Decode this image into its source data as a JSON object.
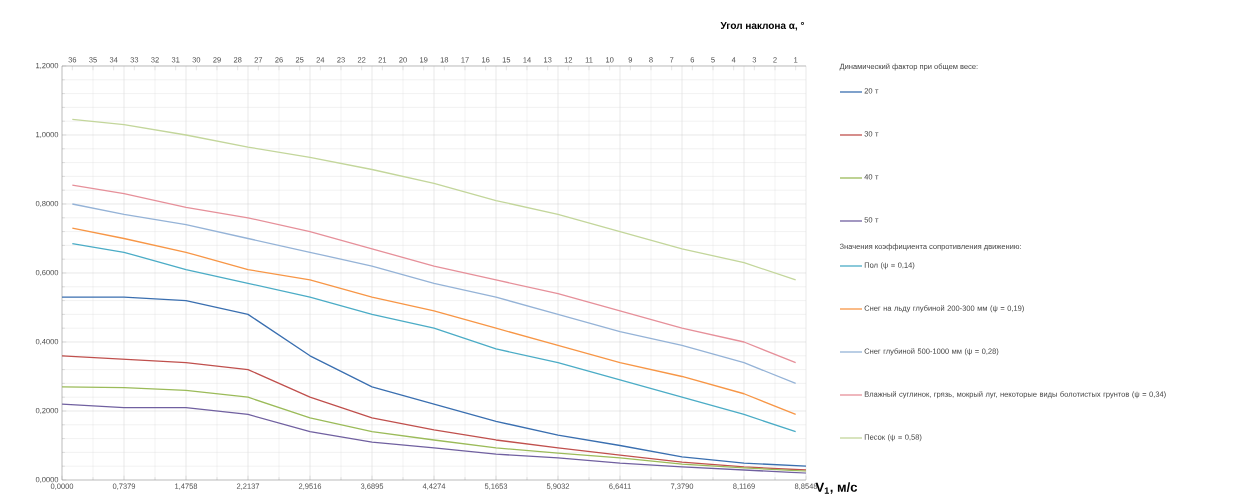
{
  "chart_data": {
    "type": "line",
    "xlabel": "V$_{1}$, м/с",
    "x2label": "Угол наклона α, °",
    "legend_title": "Динамический фактор при общем весе:",
    "annotations": [
      "Значения коэффициента сопротивления движению:"
    ],
    "x": [
      0,
      0.7379,
      1.4758,
      2.2137,
      2.9516,
      3.6895,
      4.4274,
      5.1653,
      5.9032,
      6.6411,
      7.379,
      8.1169,
      8.8548
    ],
    "xlim": [
      0,
      8.8548
    ],
    "xticks": [
      {
        "value": 0,
        "label": "0,0000"
      },
      {
        "value": 0.7379,
        "label": "0,7379"
      },
      {
        "value": 1.4758,
        "label": "1,4758"
      },
      {
        "value": 2.2137,
        "label": "2,2137"
      },
      {
        "value": 2.9516,
        "label": "2,9516"
      },
      {
        "value": 3.6895,
        "label": "3,6895"
      },
      {
        "value": 4.4274,
        "label": "4,4274"
      },
      {
        "value": 5.1653,
        "label": "5,1653"
      },
      {
        "value": 5.9032,
        "label": "5,9032"
      },
      {
        "value": 6.6411,
        "label": "6,6411"
      },
      {
        "value": 7.379,
        "label": "7,3790"
      },
      {
        "value": 8.1169,
        "label": "8,1169"
      },
      {
        "value": 8.8548,
        "label": "8,8548"
      }
    ],
    "x2lim": [
      36.5,
      0.5
    ],
    "x2ticks": [
      36,
      35,
      34,
      33,
      32,
      31,
      30,
      29,
      28,
      27,
      26,
      25,
      24,
      23,
      22,
      21,
      20,
      19,
      18,
      17,
      16,
      15,
      14,
      13,
      12,
      11,
      10,
      9,
      8,
      7,
      6,
      5,
      4,
      3,
      2,
      1
    ],
    "ylim": [
      0,
      1.2
    ],
    "yticks": [
      {
        "value": 0,
        "label": "0,0000"
      },
      {
        "value": 0.2,
        "label": "0,2000"
      },
      {
        "value": 0.4,
        "label": "0,4000"
      },
      {
        "value": 0.6,
        "label": "0,6000"
      },
      {
        "value": 0.8,
        "label": "0,8000"
      },
      {
        "value": 1.0,
        "label": "1,0000"
      },
      {
        "value": 1.2,
        "label": "1,2000"
      }
    ],
    "grid": true,
    "legend": "right",
    "marker": "none",
    "line_style": "solid",
    "series": [
      {
        "name": "20 т",
        "color": "#3a6fb0",
        "values": [
          0.53,
          0.53,
          0.52,
          0.48,
          0.36,
          0.27,
          0.22,
          0.17,
          0.13,
          0.1,
          0.067,
          0.049,
          0.04
        ]
      },
      {
        "name": "30 т",
        "color": "#c0504d",
        "values": [
          0.36,
          0.35,
          0.34,
          0.32,
          0.24,
          0.18,
          0.145,
          0.116,
          0.093,
          0.072,
          0.052,
          0.038,
          0.029
        ]
      },
      {
        "name": "40 т",
        "color": "#9bbb59",
        "values": [
          0.27,
          0.268,
          0.26,
          0.24,
          0.18,
          0.14,
          0.116,
          0.093,
          0.078,
          0.064,
          0.046,
          0.035,
          0.026
        ]
      },
      {
        "name": "50 т",
        "color": "#7060a0",
        "values": [
          0.22,
          0.21,
          0.21,
          0.19,
          0.14,
          0.11,
          0.093,
          0.075,
          0.064,
          0.049,
          0.038,
          0.029,
          0.02
        ]
      },
      {
        "name": "Пол (ψ = 0,14)",
        "color": "#4bacc6",
        "axis": "x2",
        "x": [
          36,
          33.5,
          30.5,
          27.5,
          24.5,
          21.5,
          18.5,
          15.5,
          12.5,
          9.5,
          6.5,
          3.5,
          1
        ],
        "values": [
          0.685,
          0.66,
          0.61,
          0.57,
          0.53,
          0.48,
          0.44,
          0.38,
          0.34,
          0.29,
          0.24,
          0.19,
          0.14
        ]
      },
      {
        "name": "Снег на льду глубиной 200-300 мм (ψ = 0,19)",
        "color": "#f79646",
        "axis": "x2",
        "x": [
          36,
          33.5,
          30.5,
          27.5,
          24.5,
          21.5,
          18.5,
          15.5,
          12.5,
          9.5,
          6.5,
          3.5,
          1
        ],
        "values": [
          0.73,
          0.7,
          0.66,
          0.61,
          0.58,
          0.53,
          0.49,
          0.44,
          0.39,
          0.34,
          0.3,
          0.25,
          0.19
        ]
      },
      {
        "name": "Снег глубиной 500-1000 мм (ψ = 0,28)",
        "color": "#95b3d7",
        "axis": "x2",
        "x": [
          36,
          33.5,
          30.5,
          27.5,
          24.5,
          21.5,
          18.5,
          15.5,
          12.5,
          9.5,
          6.5,
          3.5,
          1
        ],
        "values": [
          0.8,
          0.77,
          0.74,
          0.7,
          0.66,
          0.62,
          0.57,
          0.53,
          0.48,
          0.43,
          0.39,
          0.34,
          0.28
        ]
      },
      {
        "name": "Влажный суглинок, грязь, мокрый луг, некоторые виды болотистых грунтов (ψ = 0,34)",
        "color": "#e6909a",
        "axis": "x2",
        "x": [
          36,
          33.5,
          30.5,
          27.5,
          24.5,
          21.5,
          18.5,
          15.5,
          12.5,
          9.5,
          6.5,
          3.5,
          1
        ],
        "values": [
          0.855,
          0.83,
          0.79,
          0.76,
          0.72,
          0.67,
          0.62,
          0.58,
          0.54,
          0.49,
          0.44,
          0.4,
          0.34
        ]
      },
      {
        "name": "Песок (ψ = 0,58)",
        "color": "#c3d69b",
        "axis": "x2",
        "x": [
          36,
          33.5,
          30.5,
          27.5,
          24.5,
          21.5,
          18.5,
          15.5,
          12.5,
          9.5,
          6.5,
          3.5,
          1
        ],
        "values": [
          1.045,
          1.03,
          1.0,
          0.965,
          0.935,
          0.9,
          0.86,
          0.81,
          0.77,
          0.72,
          0.67,
          0.63,
          0.58
        ]
      }
    ]
  }
}
